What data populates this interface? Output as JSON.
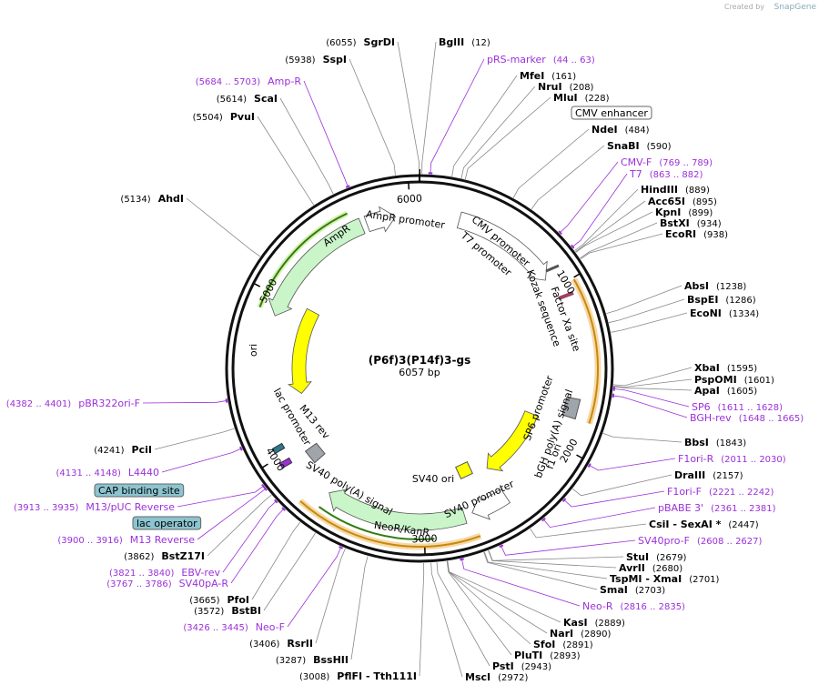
{
  "header": {
    "credit": "Created by",
    "brand": "SnapGene"
  },
  "plasmid": {
    "name": "(P6f)3(P14f)3-gs",
    "length": {
      "value": 6057,
      "label": "6057 bp"
    },
    "ticks": [
      1000,
      2000,
      3000,
      4000,
      5000,
      6000
    ]
  },
  "sites": [
    {
      "name": "BglII",
      "site": "(12)"
    },
    {
      "name": "pRS-marker",
      "range": "(44 .. 63)"
    },
    {
      "name": "MfeI",
      "site": "(161)"
    },
    {
      "name": "NruI",
      "site": "(208)"
    },
    {
      "name": "MluI",
      "site": "(228)"
    },
    {
      "name": "NdeI",
      "site": "(484)"
    },
    {
      "name": "SnaBI",
      "site": "(590)"
    },
    {
      "name": "CMV-F",
      "range": "(769 .. 789)"
    },
    {
      "name": "T7",
      "range": "(863 .. 882)"
    },
    {
      "name": "HindIII",
      "site": "(889)"
    },
    {
      "name": "Acc65I",
      "site": "(895)"
    },
    {
      "name": "KpnI",
      "site": "(899)"
    },
    {
      "name": "BstXI",
      "site": "(934)"
    },
    {
      "name": "EcoRI",
      "site": "(938)"
    },
    {
      "name": "AbsI",
      "site": "(1238)"
    },
    {
      "name": "BspEI",
      "site": "(1286)"
    },
    {
      "name": "EcoNI",
      "site": "(1334)"
    },
    {
      "name": "XbaI",
      "site": "(1595)"
    },
    {
      "name": "PspOMI",
      "site": "(1601)"
    },
    {
      "name": "ApaI",
      "site": "(1605)"
    },
    {
      "name": "SP6",
      "range": "(1611 .. 1628)"
    },
    {
      "name": "BGH-rev",
      "range": "(1648 .. 1665)"
    },
    {
      "name": "BbsI",
      "site": "(1843)"
    },
    {
      "name": "F1ori-R",
      "range": "(2011 .. 2030)"
    },
    {
      "name": "DraIII",
      "site": "(2157)"
    },
    {
      "name": "F1ori-F",
      "range": "(2221 .. 2242)"
    },
    {
      "name": "pBABE 3'",
      "range": "(2361 .. 2381)"
    },
    {
      "name": "CsiI   - SexAI *",
      "site": "(2447)"
    },
    {
      "name": "SV40pro-F",
      "range": "(2608 .. 2627)"
    },
    {
      "name": "StuI",
      "site": "(2679)"
    },
    {
      "name": "AvrII",
      "site": "(2680)"
    },
    {
      "name": "TspMI   - XmaI",
      "site": "(2701)"
    },
    {
      "name": "SmaI",
      "site": "(2703)"
    },
    {
      "name": "Neo-R",
      "range": "(2816 .. 2835)"
    },
    {
      "name": "KasI",
      "site": "(2889)"
    },
    {
      "name": "NarI",
      "site": "(2890)"
    },
    {
      "name": "SfoI",
      "site": "(2891)"
    },
    {
      "name": "PluTI",
      "site": "(2893)"
    },
    {
      "name": "PstI",
      "site": "(2943)"
    },
    {
      "name": "MscI",
      "site": "(2972)"
    },
    {
      "name": "PflFI   - Tth111I",
      "site": "(3008)"
    },
    {
      "name": "BssHII",
      "site": "(3287)"
    },
    {
      "name": "RsrII",
      "site": "(3406)"
    },
    {
      "name": "Neo-F",
      "range": "(3426 .. 3445)"
    },
    {
      "name": "BstBI",
      "site": "(3572)"
    },
    {
      "name": "PfoI",
      "site": "(3665)"
    },
    {
      "name": "SV40pA-R",
      "range": "(3767 .. 3786)"
    },
    {
      "name": "EBV-rev",
      "range": "(3821 .. 3840)"
    },
    {
      "name": "BstZ17I",
      "site": "(3862)"
    },
    {
      "name": "M13 Reverse",
      "range": "(3900 .. 3916)"
    },
    {
      "name": "M13/pUC Reverse",
      "range": "(3913 .. 3935)"
    },
    {
      "name": "L4440",
      "range": "(4131 .. 4148)"
    },
    {
      "name": "PciI",
      "site": "(4241)"
    },
    {
      "name": "pBR322ori-F",
      "range": "(4382 .. 4401)"
    },
    {
      "name": "AhdI",
      "site": "(5134)"
    },
    {
      "name": "PvuI",
      "site": "(5504)"
    },
    {
      "name": "ScaI",
      "site": "(5614)"
    },
    {
      "name": "Amp-R",
      "range": "(5684 .. 5703)"
    },
    {
      "name": "SspI",
      "site": "(5938)"
    },
    {
      "name": "SgrDI",
      "site": "(6055)"
    }
  ],
  "boxed_features": [
    "CMV enhancer",
    "CAP binding site",
    "lac operator"
  ],
  "features": [
    "AmpR promoter",
    "AmpR",
    "ori",
    "CMV promoter",
    "T7 promoter",
    "Kozak sequence",
    "Factor Xa site",
    "SP6 promoter",
    "bGH poly(A) signal",
    "f1 ori",
    "SV40 promoter",
    "SV40 ori",
    "NeoR/KanR",
    "SV40 poly(A) signal",
    "M13 rev",
    "lac promoter"
  ]
}
